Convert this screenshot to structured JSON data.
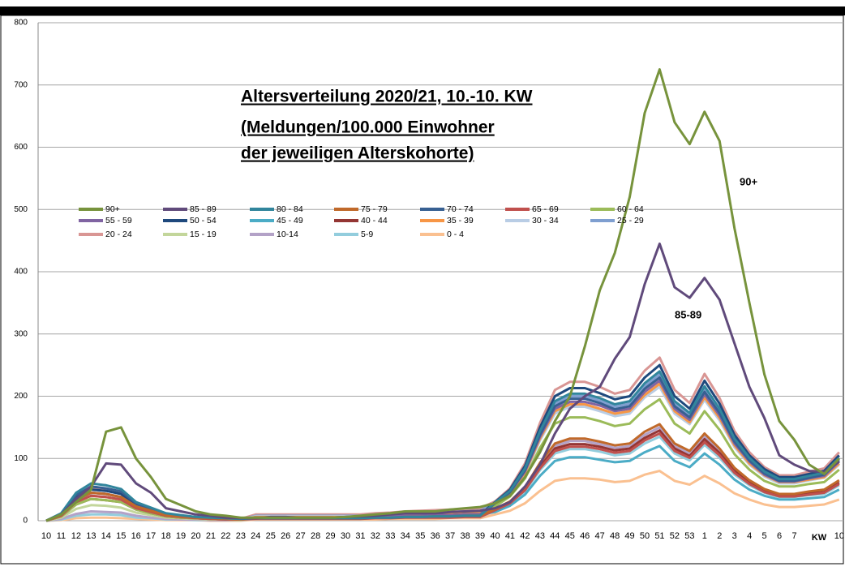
{
  "chart_data": {
    "type": "line",
    "title": [
      "Altersverteilung 2020/21, 10.-10. KW",
      "(Meldungen/100.000 Einwohner",
      "der jeweiligen Alterskohorte)"
    ],
    "x_label": "KW",
    "annotations": [
      "90+",
      "85-89"
    ],
    "categories": [
      "10",
      "11",
      "12",
      "13",
      "14",
      "15",
      "16",
      "17",
      "18",
      "19",
      "20",
      "21",
      "22",
      "23",
      "24",
      "25",
      "26",
      "27",
      "28",
      "29",
      "30",
      "31",
      "32",
      "33",
      "34",
      "35",
      "36",
      "37",
      "38",
      "39",
      "40",
      "41",
      "42",
      "43",
      "44",
      "45",
      "46",
      "47",
      "48",
      "49",
      "50",
      "51",
      "52",
      "53",
      "1",
      "2",
      "3",
      "4",
      "5",
      "6",
      "7",
      null,
      null,
      "10"
    ],
    "ylim": [
      0,
      800
    ],
    "yticks": [
      0,
      100,
      200,
      300,
      400,
      500,
      600,
      700,
      800
    ],
    "grid": true,
    "series": [
      {
        "name": "90+",
        "color": "#77933c",
        "values": [
          0,
          10,
          30,
          50,
          143,
          150,
          100,
          70,
          35,
          25,
          15,
          10,
          8,
          5,
          5,
          5,
          5,
          5,
          5,
          5,
          6,
          8,
          10,
          12,
          15,
          15,
          15,
          18,
          20,
          22,
          28,
          40,
          70,
          110,
          160,
          200,
          280,
          370,
          430,
          520,
          655,
          725,
          640,
          605,
          657,
          610,
          470,
          350,
          235,
          160,
          130,
          90,
          75,
          100
        ]
      },
      {
        "name": "85 - 89",
        "color": "#604a7b",
        "values": [
          0,
          10,
          35,
          55,
          92,
          90,
          60,
          45,
          20,
          15,
          10,
          8,
          5,
          4,
          4,
          6,
          6,
          5,
          5,
          5,
          6,
          7,
          8,
          10,
          12,
          12,
          12,
          14,
          15,
          16,
          20,
          30,
          55,
          90,
          140,
          180,
          200,
          215,
          260,
          295,
          380,
          445,
          375,
          358,
          390,
          355,
          285,
          215,
          165,
          105,
          90,
          80,
          78,
          95
        ]
      },
      {
        "name": "80 - 84",
        "color": "#31859c",
        "values": [
          0,
          12,
          45,
          60,
          57,
          51,
          30,
          21,
          12,
          9,
          6,
          5,
          4,
          3,
          4,
          4,
          4,
          4,
          4,
          4,
          4,
          4,
          5,
          5,
          6,
          6,
          7,
          7,
          8,
          8,
          29,
          48,
          84,
          144,
          192,
          204,
          204,
          197,
          187,
          192,
          221,
          240,
          192,
          173,
          216,
          180,
          132,
          101,
          79,
          67,
          67,
          72,
          77,
          101
        ]
      },
      {
        "name": "75 - 79",
        "color": "#c0692a",
        "values": [
          0,
          9,
          34,
          45,
          43,
          38,
          23,
          16,
          9,
          7,
          5,
          4,
          3,
          2,
          4,
          4,
          4,
          4,
          4,
          4,
          4,
          4,
          5,
          5,
          6,
          6,
          7,
          7,
          8,
          8,
          19,
          31,
          54,
          93,
          124,
          132,
          132,
          127,
          121,
          124,
          143,
          155,
          124,
          112,
          140,
          116,
          85,
          65,
          51,
          43,
          43,
          47,
          50,
          65
        ]
      },
      {
        "name": "70 - 74",
        "color": "#376092",
        "values": [
          0,
          11,
          41,
          55,
          52,
          47,
          28,
          19,
          11,
          8,
          6,
          4,
          3,
          3,
          4,
          4,
          4,
          4,
          4,
          4,
          4,
          4,
          5,
          5,
          6,
          6,
          7,
          7,
          8,
          8,
          28,
          46,
          81,
          138,
          184,
          196,
          196,
          189,
          179,
          184,
          212,
          230,
          184,
          166,
          207,
          173,
          127,
          97,
          76,
          64,
          64,
          69,
          74,
          97
        ]
      },
      {
        "name": "65 - 69",
        "color": "#c0504d",
        "values": [
          0,
          8,
          30,
          40,
          38,
          34,
          20,
          14,
          8,
          6,
          4,
          3,
          2,
          2,
          3,
          3,
          3,
          3,
          3,
          3,
          3,
          3,
          4,
          4,
          5,
          5,
          5,
          5,
          6,
          6,
          17,
          28,
          49,
          84,
          112,
          119,
          119,
          115,
          109,
          112,
          129,
          140,
          112,
          101,
          126,
          105,
          77,
          59,
          46,
          39,
          39,
          42,
          45,
          59
        ]
      },
      {
        "name": "60 - 64",
        "color": "#9bbb59",
        "values": [
          0,
          7,
          26,
          35,
          33,
          30,
          18,
          12,
          7,
          5,
          4,
          3,
          2,
          2,
          4,
          4,
          4,
          4,
          4,
          4,
          4,
          4,
          5,
          5,
          6,
          6,
          7,
          7,
          8,
          8,
          23,
          39,
          68,
          117,
          156,
          166,
          166,
          160,
          152,
          156,
          179,
          195,
          156,
          140,
          176,
          146,
          107,
          82,
          64,
          55,
          55,
          59,
          62,
          82
        ]
      },
      {
        "name": "55 - 59",
        "color": "#8064a2",
        "values": [
          0,
          9,
          34,
          45,
          43,
          38,
          23,
          16,
          9,
          7,
          5,
          4,
          3,
          2,
          5,
          5,
          5,
          5,
          5,
          5,
          5,
          5,
          6,
          7,
          8,
          8,
          9,
          9,
          10,
          10,
          27,
          45,
          79,
          135,
          180,
          191,
          191,
          185,
          176,
          180,
          207,
          225,
          180,
          162,
          203,
          169,
          124,
          95,
          74,
          63,
          63,
          68,
          72,
          95
        ]
      },
      {
        "name": "50 - 54",
        "color": "#1f497d",
        "values": [
          0,
          10,
          38,
          50,
          48,
          43,
          25,
          18,
          10,
          8,
          5,
          4,
          3,
          3,
          5,
          5,
          5,
          5,
          5,
          5,
          5,
          5,
          6,
          7,
          8,
          8,
          9,
          9,
          10,
          10,
          30,
          50,
          88,
          150,
          200,
          213,
          213,
          205,
          195,
          200,
          230,
          250,
          200,
          180,
          225,
          188,
          138,
          105,
          83,
          70,
          70,
          75,
          80,
          105
        ]
      },
      {
        "name": "45 - 49",
        "color": "#4bacc6",
        "values": [
          0,
          9,
          34,
          45,
          43,
          38,
          23,
          16,
          9,
          7,
          5,
          4,
          3,
          2,
          5,
          5,
          5,
          5,
          5,
          5,
          5,
          5,
          6,
          7,
          8,
          8,
          9,
          9,
          10,
          10,
          14,
          24,
          42,
          72,
          96,
          102,
          102,
          98,
          94,
          96,
          110,
          120,
          96,
          86,
          108,
          90,
          66,
          50,
          40,
          34,
          34,
          36,
          38,
          50
        ]
      },
      {
        "name": "40 - 44",
        "color": "#943634",
        "values": [
          0,
          7,
          26,
          35,
          33,
          30,
          18,
          12,
          7,
          5,
          4,
          3,
          2,
          2,
          5,
          5,
          5,
          5,
          5,
          5,
          5,
          5,
          6,
          7,
          8,
          8,
          9,
          9,
          10,
          10,
          17,
          29,
          51,
          87,
          116,
          123,
          123,
          119,
          113,
          116,
          133,
          145,
          116,
          104,
          131,
          109,
          80,
          61,
          48,
          41,
          41,
          44,
          46,
          61
        ]
      },
      {
        "name": "35 - 39",
        "color": "#f79646",
        "values": [
          0,
          8,
          30,
          40,
          38,
          34,
          20,
          14,
          8,
          6,
          4,
          3,
          2,
          2,
          6,
          6,
          6,
          6,
          6,
          6,
          6,
          6,
          7,
          8,
          9,
          10,
          11,
          11,
          12,
          12,
          26,
          44,
          77,
          132,
          176,
          187,
          187,
          180,
          172,
          176,
          202,
          220,
          176,
          158,
          198,
          165,
          121,
          92,
          73,
          62,
          62,
          66,
          70,
          92
        ]
      },
      {
        "name": "30 - 34",
        "color": "#b9cde5",
        "values": [
          0,
          8,
          30,
          40,
          38,
          34,
          20,
          14,
          8,
          6,
          4,
          3,
          2,
          2,
          7,
          7,
          7,
          7,
          7,
          7,
          7,
          7,
          8,
          9,
          11,
          11,
          12,
          13,
          13,
          14,
          26,
          43,
          75,
          129,
          172,
          183,
          183,
          176,
          168,
          172,
          198,
          215,
          172,
          155,
          194,
          161,
          118,
          90,
          71,
          60,
          60,
          65,
          69,
          90
        ]
      },
      {
        "name": "25 - 29",
        "color": "#7f9fd0",
        "values": [
          0,
          9,
          34,
          45,
          43,
          38,
          23,
          16,
          9,
          7,
          5,
          4,
          3,
          2,
          8,
          8,
          8,
          8,
          8,
          8,
          8,
          8,
          10,
          10,
          12,
          13,
          14,
          14,
          15,
          16,
          28,
          47,
          82,
          141,
          188,
          200,
          200,
          193,
          183,
          188,
          216,
          235,
          188,
          169,
          212,
          176,
          129,
          99,
          78,
          66,
          66,
          71,
          75,
          99
        ]
      },
      {
        "name": "20 - 24",
        "color": "#d99694",
        "values": [
          0,
          10,
          39,
          52,
          49,
          44,
          26,
          18,
          10,
          8,
          5,
          4,
          3,
          3,
          10,
          10,
          10,
          10,
          10,
          10,
          10,
          10,
          12,
          13,
          15,
          16,
          17,
          18,
          19,
          20,
          31,
          52,
          92,
          157,
          210,
          223,
          223,
          215,
          204,
          210,
          241,
          262,
          210,
          189,
          236,
          197,
          144,
          110,
          86,
          73,
          73,
          79,
          84,
          110
        ]
      },
      {
        "name": "15 - 19",
        "color": "#c3d69b",
        "values": [
          0,
          5,
          19,
          25,
          24,
          21,
          13,
          9,
          5,
          4,
          3,
          2,
          2,
          1,
          8,
          8,
          8,
          8,
          8,
          8,
          8,
          8,
          10,
          10,
          12,
          13,
          14,
          14,
          15,
          16,
          26,
          44,
          76,
          131,
          174,
          185,
          185,
          179,
          170,
          174,
          201,
          218,
          174,
          157,
          196,
          164,
          120,
          92,
          72,
          61,
          61,
          65,
          70,
          92
        ]
      },
      {
        "name": "10-14",
        "color": "#b3a2c7",
        "values": [
          0,
          3,
          11,
          15,
          14,
          13,
          8,
          5,
          3,
          2,
          2,
          1,
          1,
          1,
          5,
          5,
          5,
          5,
          5,
          5,
          5,
          5,
          6,
          7,
          8,
          8,
          9,
          9,
          10,
          10,
          18,
          30,
          53,
          90,
          120,
          128,
          128,
          123,
          117,
          120,
          138,
          150,
          120,
          108,
          135,
          113,
          83,
          63,
          50,
          42,
          42,
          45,
          48,
          63
        ]
      },
      {
        "name": "5-9",
        "color": "#93cddd",
        "values": [
          0,
          2,
          8,
          10,
          10,
          9,
          5,
          4,
          2,
          2,
          1,
          1,
          1,
          1,
          3,
          3,
          3,
          3,
          3,
          3,
          3,
          3,
          4,
          4,
          5,
          5,
          5,
          5,
          6,
          6,
          16,
          27,
          47,
          81,
          108,
          115,
          115,
          111,
          105,
          108,
          124,
          135,
          108,
          97,
          122,
          101,
          74,
          57,
          45,
          38,
          38,
          41,
          43,
          57
        ]
      },
      {
        "name": "0 - 4",
        "color": "#fac090",
        "values": [
          0,
          1,
          4,
          5,
          5,
          4,
          3,
          2,
          1,
          1,
          1,
          0,
          0,
          0,
          2,
          2,
          2,
          2,
          2,
          2,
          2,
          2,
          2,
          3,
          3,
          3,
          3,
          4,
          4,
          4,
          10,
          16,
          28,
          48,
          64,
          68,
          68,
          66,
          62,
          64,
          74,
          80,
          64,
          58,
          72,
          60,
          44,
          34,
          26,
          22,
          22,
          24,
          26,
          34
        ]
      }
    ]
  }
}
